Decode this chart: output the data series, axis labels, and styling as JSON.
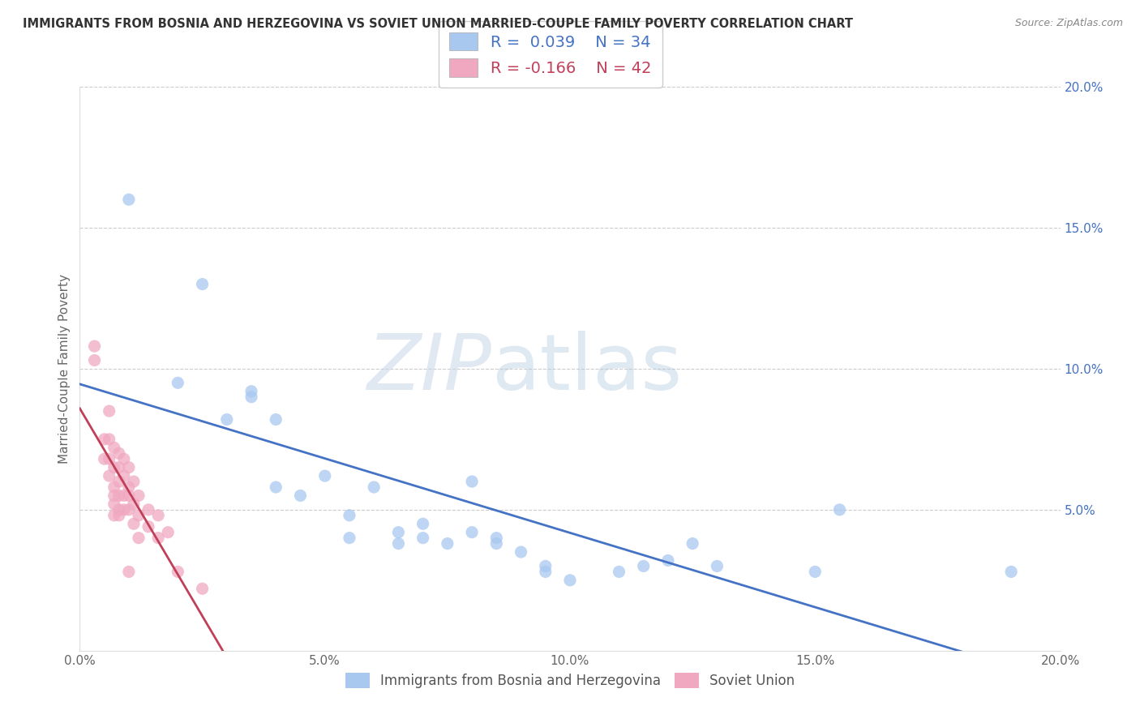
{
  "title": "IMMIGRANTS FROM BOSNIA AND HERZEGOVINA VS SOVIET UNION MARRIED-COUPLE FAMILY POVERTY CORRELATION CHART",
  "source": "Source: ZipAtlas.com",
  "ylabel": "Married-Couple Family Poverty",
  "xlim": [
    0.0,
    0.2
  ],
  "ylim": [
    0.0,
    0.2
  ],
  "xtick_labels": [
    "0.0%",
    "5.0%",
    "10.0%",
    "15.0%",
    "20.0%"
  ],
  "xtick_vals": [
    0.0,
    0.05,
    0.1,
    0.15,
    0.2
  ],
  "ytick_right_labels": [
    "20.0%",
    "15.0%",
    "10.0%",
    "5.0%"
  ],
  "ytick_right_vals": [
    0.2,
    0.15,
    0.1,
    0.05
  ],
  "bosnia_R": 0.039,
  "bosnia_N": 34,
  "soviet_R": -0.166,
  "soviet_N": 42,
  "bosnia_color": "#a8c8f0",
  "soviet_color": "#f0a8c0",
  "bosnia_line_color": "#4472c4",
  "soviet_line_color": "#c0405a",
  "bosnia_scatter": [
    [
      0.01,
      0.16
    ],
    [
      0.02,
      0.095
    ],
    [
      0.025,
      0.13
    ],
    [
      0.03,
      0.082
    ],
    [
      0.035,
      0.092
    ],
    [
      0.035,
      0.09
    ],
    [
      0.04,
      0.058
    ],
    [
      0.04,
      0.082
    ],
    [
      0.045,
      0.055
    ],
    [
      0.05,
      0.062
    ],
    [
      0.055,
      0.048
    ],
    [
      0.055,
      0.04
    ],
    [
      0.06,
      0.058
    ],
    [
      0.065,
      0.042
    ],
    [
      0.065,
      0.038
    ],
    [
      0.07,
      0.045
    ],
    [
      0.07,
      0.04
    ],
    [
      0.075,
      0.038
    ],
    [
      0.08,
      0.042
    ],
    [
      0.08,
      0.06
    ],
    [
      0.085,
      0.038
    ],
    [
      0.085,
      0.04
    ],
    [
      0.09,
      0.035
    ],
    [
      0.095,
      0.03
    ],
    [
      0.095,
      0.028
    ],
    [
      0.1,
      0.025
    ],
    [
      0.11,
      0.028
    ],
    [
      0.115,
      0.03
    ],
    [
      0.12,
      0.032
    ],
    [
      0.125,
      0.038
    ],
    [
      0.13,
      0.03
    ],
    [
      0.15,
      0.028
    ],
    [
      0.155,
      0.05
    ],
    [
      0.19,
      0.028
    ]
  ],
  "soviet_scatter": [
    [
      0.003,
      0.108
    ],
    [
      0.003,
      0.103
    ],
    [
      0.005,
      0.075
    ],
    [
      0.005,
      0.068
    ],
    [
      0.006,
      0.085
    ],
    [
      0.006,
      0.075
    ],
    [
      0.006,
      0.068
    ],
    [
      0.006,
      0.062
    ],
    [
      0.007,
      0.072
    ],
    [
      0.007,
      0.065
    ],
    [
      0.007,
      0.058
    ],
    [
      0.007,
      0.055
    ],
    [
      0.007,
      0.052
    ],
    [
      0.007,
      0.048
    ],
    [
      0.008,
      0.07
    ],
    [
      0.008,
      0.065
    ],
    [
      0.008,
      0.06
    ],
    [
      0.008,
      0.055
    ],
    [
      0.008,
      0.05
    ],
    [
      0.008,
      0.048
    ],
    [
      0.009,
      0.068
    ],
    [
      0.009,
      0.062
    ],
    [
      0.009,
      0.055
    ],
    [
      0.009,
      0.05
    ],
    [
      0.01,
      0.065
    ],
    [
      0.01,
      0.058
    ],
    [
      0.01,
      0.055
    ],
    [
      0.01,
      0.05
    ],
    [
      0.01,
      0.028
    ],
    [
      0.011,
      0.06
    ],
    [
      0.011,
      0.052
    ],
    [
      0.011,
      0.045
    ],
    [
      0.012,
      0.055
    ],
    [
      0.012,
      0.048
    ],
    [
      0.012,
      0.04
    ],
    [
      0.014,
      0.05
    ],
    [
      0.014,
      0.044
    ],
    [
      0.016,
      0.048
    ],
    [
      0.016,
      0.04
    ],
    [
      0.018,
      0.042
    ],
    [
      0.02,
      0.028
    ],
    [
      0.025,
      0.022
    ]
  ],
  "watermark_zip": "ZIP",
  "watermark_atlas": "atlas",
  "legend_entries": [
    "Immigrants from Bosnia and Herzegovina",
    "Soviet Union"
  ]
}
